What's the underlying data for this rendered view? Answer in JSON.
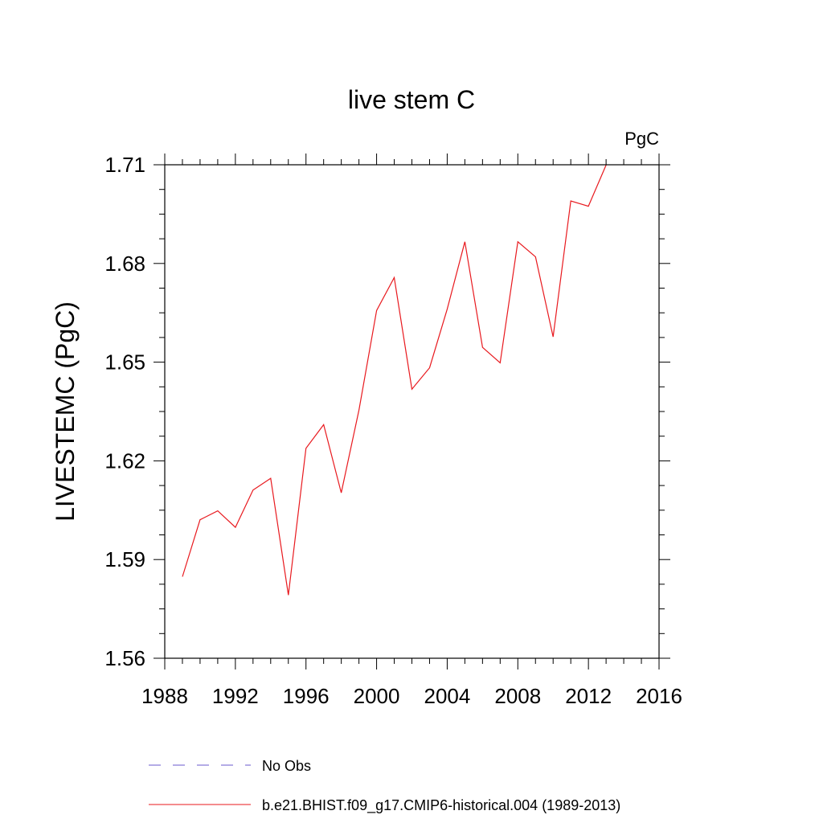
{
  "chart_data": {
    "type": "line",
    "title": "live stem C",
    "units_label": "PgC",
    "ylabel": "LIVESTEMC  (PgC)",
    "xlabel": "",
    "xlim": [
      1988,
      2016
    ],
    "ylim": [
      1.56,
      1.71
    ],
    "x_ticks": [
      1988,
      1992,
      1996,
      2000,
      2004,
      2008,
      2012,
      2016
    ],
    "y_ticks": [
      1.56,
      1.59,
      1.62,
      1.65,
      1.68,
      1.71
    ],
    "y_tick_labels": [
      "1.56",
      "1.59",
      "1.62",
      "1.65",
      "1.68",
      "1.71"
    ],
    "grid": false,
    "legend_position": "bottom",
    "legend": [
      {
        "label": "No Obs",
        "color": "#6a5acd",
        "style": "dashed"
      },
      {
        "label": "b.e21.BHIST.f09_g17.CMIP6-historical.004 (1989-2013)",
        "color": "#e8191e",
        "style": "solid"
      }
    ],
    "series": [
      {
        "color": "#e8191e",
        "x": [
          1989,
          1990,
          1991,
          1992,
          1993,
          1994,
          1995,
          1996,
          1997,
          1998,
          1999,
          2000,
          2001,
          2002,
          2003,
          2004,
          2005,
          2006,
          2007,
          2008,
          2009,
          2010,
          2011,
          2012,
          2013
        ],
        "values": [
          1.5848,
          1.6021,
          1.6048,
          1.5998,
          1.6111,
          1.6147,
          1.5792,
          1.6238,
          1.631,
          1.6103,
          1.6354,
          1.6657,
          1.6757,
          1.6418,
          1.6483,
          1.6661,
          1.6866,
          1.6545,
          1.6498,
          1.6866,
          1.682,
          1.6577,
          1.699,
          1.6974,
          1.7099
        ]
      }
    ]
  }
}
